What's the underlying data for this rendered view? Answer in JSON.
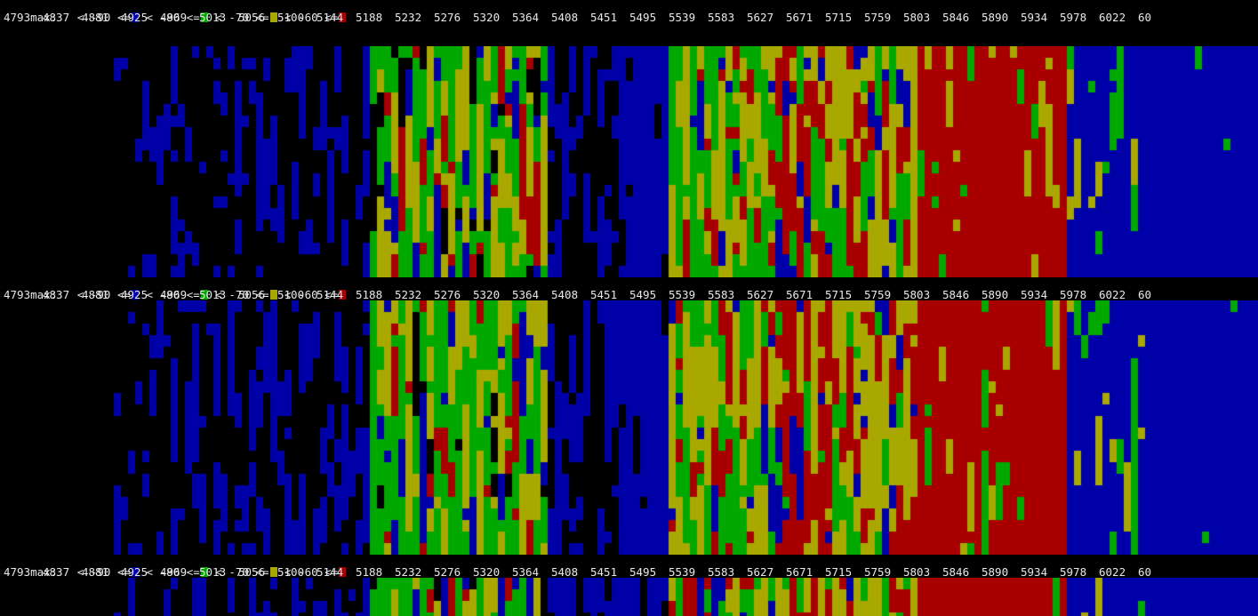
{
  "legend": {
    "max_label": "max:",
    "bands": [
      {
        "text": "< -90 <=",
        "color": "#0000a8"
      },
      {
        "text": "< -80 <=",
        "color": "#00a800"
      },
      {
        "text": "< -70 <=",
        "color": "#a8a800"
      },
      {
        "text": "< -60 <=",
        "color": "#a80000"
      }
    ]
  },
  "frequency_labels": [
    "4793",
    "4837",
    "4881",
    "4925",
    "4969",
    "5013",
    "5056",
    "5100",
    "5144",
    "5188",
    "5232",
    "5276",
    "5320",
    "5364",
    "5408",
    "5451",
    "5495",
    "5539",
    "5583",
    "5627",
    "5671",
    "5715",
    "5759",
    "5803",
    "5846",
    "5890",
    "5934",
    "5978",
    "6022",
    "60"
  ],
  "colors": {
    "background": "#000000",
    "weak": "#0000a8",
    "low": "#00a800",
    "mid": "#a8a800",
    "strong": "#a80000",
    "text": "#e8e8e8"
  },
  "panels": [
    {
      "id": "panel-1"
    },
    {
      "id": "panel-2"
    },
    {
      "id": "panel-3"
    }
  ]
}
